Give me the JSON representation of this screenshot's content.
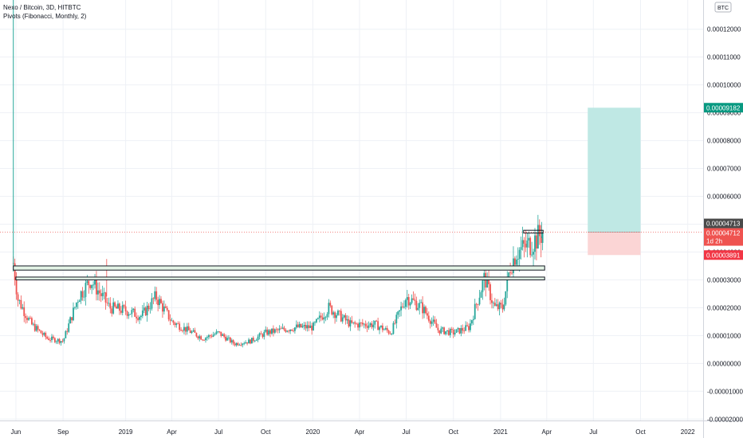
{
  "header": {
    "symbol_line": "Nexo / Bitcoin, 3D, HITBTC",
    "indicator_line": "Pivots (Fibonacci, Monthly, 2)"
  },
  "scale": {
    "currency": "BTC"
  },
  "colors": {
    "up": "#26a69a",
    "down": "#ef5350",
    "grid": "#eef1f6",
    "axis_text": "#131722",
    "zone_fill": "#e3f3e6",
    "target_fill": "#bfe8e4",
    "stop_fill": "#fbd5d5",
    "target_badge": "#089981",
    "stop_badge": "#f23645",
    "last_price_badge": "#ef5350",
    "prev_close_badge": "#4a4a4a"
  },
  "chart_data": {
    "type": "candlestick",
    "title": "Nexo / Bitcoin, 3D, HITBTC",
    "xlabel": "",
    "ylabel": "",
    "y_unit": "BTC",
    "x_range": [
      "2018-05-01",
      "2022-01-31"
    ],
    "ylim": [
      -2.05e-05,
      0.0001305
    ],
    "y_ticks": [
      "-0.00002000",
      "-0.00001000",
      "0.00000000",
      "0.00001000",
      "0.00002000",
      "0.00003000",
      "0.00004000",
      "0.00005000",
      "0.00006000",
      "0.00007000",
      "0.00008000",
      "0.00009000",
      "0.00010000",
      "0.00011000",
      "0.00012000"
    ],
    "x_ticks": [
      {
        "date": "2018-06-01",
        "label": "Jun"
      },
      {
        "date": "2018-09-01",
        "label": "Sep"
      },
      {
        "date": "2019-01-01",
        "label": "2019"
      },
      {
        "date": "2019-04-01",
        "label": "Apr"
      },
      {
        "date": "2019-07-01",
        "label": "Jul"
      },
      {
        "date": "2019-10-01",
        "label": "Oct"
      },
      {
        "date": "2020-01-01",
        "label": "2020"
      },
      {
        "date": "2020-04-01",
        "label": "Apr"
      },
      {
        "date": "2020-07-01",
        "label": "Jul"
      },
      {
        "date": "2020-10-01",
        "label": "Oct"
      },
      {
        "date": "2021-01-01",
        "label": "2021"
      },
      {
        "date": "2021-04-01",
        "label": "Apr"
      },
      {
        "date": "2021-07-01",
        "label": "Jul"
      },
      {
        "date": "2021-10-01",
        "label": "Oct"
      },
      {
        "date": "2022-01-01",
        "label": "2022"
      }
    ],
    "series": [
      {
        "close_path": [
          {
            "date": "2018-05-27",
            "close": 3.6e-05
          },
          {
            "date": "2018-06-05",
            "close": 2.3e-05
          },
          {
            "date": "2018-07-01",
            "close": 1.4e-05
          },
          {
            "date": "2018-08-01",
            "close": 9e-06
          },
          {
            "date": "2018-09-01",
            "close": 8e-06
          },
          {
            "date": "2018-10-01",
            "close": 2.4e-05
          },
          {
            "date": "2018-10-25",
            "close": 3e-05
          },
          {
            "date": "2018-12-01",
            "close": 2e-05
          },
          {
            "date": "2019-01-01",
            "close": 1.9e-05
          },
          {
            "date": "2019-02-01",
            "close": 1.7e-05
          },
          {
            "date": "2019-03-01",
            "close": 2.4e-05
          },
          {
            "date": "2019-04-01",
            "close": 1.5e-05
          },
          {
            "date": "2019-05-01",
            "close": 1.2e-05
          },
          {
            "date": "2019-06-01",
            "close": 9e-06
          },
          {
            "date": "2019-07-01",
            "close": 1.1e-05
          },
          {
            "date": "2019-08-01",
            "close": 7e-06
          },
          {
            "date": "2019-09-01",
            "close": 8e-06
          },
          {
            "date": "2019-10-01",
            "close": 1.1e-05
          },
          {
            "date": "2019-12-01",
            "close": 1.3e-05
          },
          {
            "date": "2020-01-01",
            "close": 1.3e-05
          },
          {
            "date": "2020-02-01",
            "close": 2e-05
          },
          {
            "date": "2020-03-15",
            "close": 1.4e-05
          },
          {
            "date": "2020-05-01",
            "close": 1.4e-05
          },
          {
            "date": "2020-06-01",
            "close": 1.1e-05
          },
          {
            "date": "2020-07-01",
            "close": 2.4e-05
          },
          {
            "date": "2020-08-01",
            "close": 2e-05
          },
          {
            "date": "2020-09-01",
            "close": 1.2e-05
          },
          {
            "date": "2020-10-01",
            "close": 1.1e-05
          },
          {
            "date": "2020-11-01",
            "close": 1.3e-05
          },
          {
            "date": "2020-12-01",
            "close": 3.1e-05
          },
          {
            "date": "2020-12-20",
            "close": 2e-05
          },
          {
            "date": "2021-01-05",
            "close": 2e-05
          },
          {
            "date": "2021-01-20",
            "close": 3.5e-05
          },
          {
            "date": "2021-02-01",
            "close": 4e-05
          },
          {
            "date": "2021-03-01",
            "close": 4.3e-05
          },
          {
            "date": "2021-03-25",
            "close": 4.71e-05
          }
        ]
      }
    ],
    "horizontal_zones": [
      {
        "x_start": "2018-05-27",
        "x_end": "2021-03-28",
        "y_low": 3.35e-05,
        "y_high": 3.5e-05
      },
      {
        "x_start": "2018-06-01",
        "x_end": "2021-03-28",
        "y_low": 3e-05,
        "y_high": 3.1e-05
      },
      {
        "x_start": "2021-02-15",
        "x_end": "2021-03-25",
        "y_low": 4.68e-05,
        "y_high": 4.78e-05
      }
    ],
    "position": {
      "x_start": "2021-06-20",
      "x_end": "2021-10-01",
      "entry": 4.712e-05,
      "target": 9.182e-05,
      "stop": 3.891e-05
    },
    "price_labels": {
      "target": "0.00009182",
      "previous_close": "0.00004713",
      "last": "0.00004712",
      "countdown": "1d 2h",
      "stop": "0.00003891"
    },
    "last_price": 4.712e-05,
    "grid": true
  }
}
